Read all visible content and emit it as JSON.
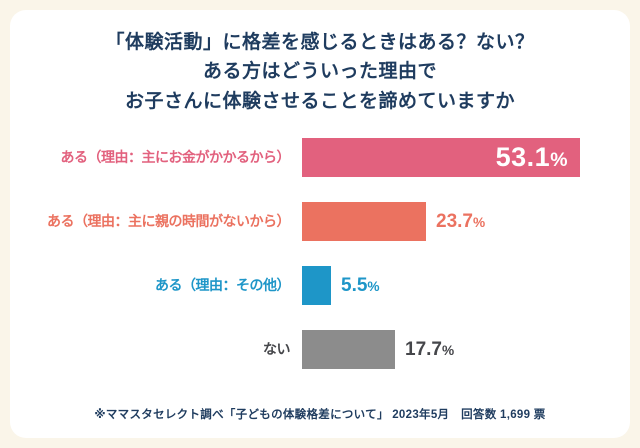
{
  "background_color": "#FAF5E9",
  "card_color": "#FFFFFF",
  "title": {
    "color": "#1F3C5F",
    "lines": [
      "「体験活動」に格差を感じるときはある？ない？",
      "ある方はどういった理由で",
      "お子さんに体験させることを諦めていますか"
    ]
  },
  "chart_data": {
    "type": "bar",
    "orientation": "horizontal",
    "unit": "%",
    "xlim": [
      0,
      55
    ],
    "grid": false,
    "legend": false,
    "categories": [
      "ある（理由：主にお金がかかるから）",
      "ある（理由：主に親の時間がないから）",
      "ある（理由：その他）",
      "ない"
    ],
    "values": [
      53.1,
      23.7,
      5.5,
      17.7
    ],
    "series": [
      {
        "label": "ある（理由：主にお金がかかるから）",
        "value": 53.1,
        "display": "53.1%",
        "bar_color": "#E2617E",
        "label_color": "#E2617E",
        "value_color": "#FFFFFF",
        "value_position": "inside"
      },
      {
        "label": "ある（理由：主に親の時間がないから）",
        "value": 23.7,
        "display": "23.7%",
        "bar_color": "#EB7260",
        "label_color": "#EB7260",
        "value_color": "#EB7260",
        "value_position": "outside"
      },
      {
        "label": "ある（理由：その他）",
        "value": 5.5,
        "display": "5.5%",
        "bar_color": "#1E96C8",
        "label_color": "#1E96C8",
        "value_color": "#1E96C8",
        "value_position": "outside"
      },
      {
        "label": "ない",
        "value": 17.7,
        "display": "17.7%",
        "bar_color": "#8C8C8C",
        "label_color": "#45464A",
        "value_color": "#45464A",
        "value_position": "outside"
      }
    ]
  },
  "footer": {
    "text": "※ママスタセレクト調べ「子どもの体験格差について」 2023年5月　回答数 1,699 票",
    "color": "#1F3C5F"
  }
}
